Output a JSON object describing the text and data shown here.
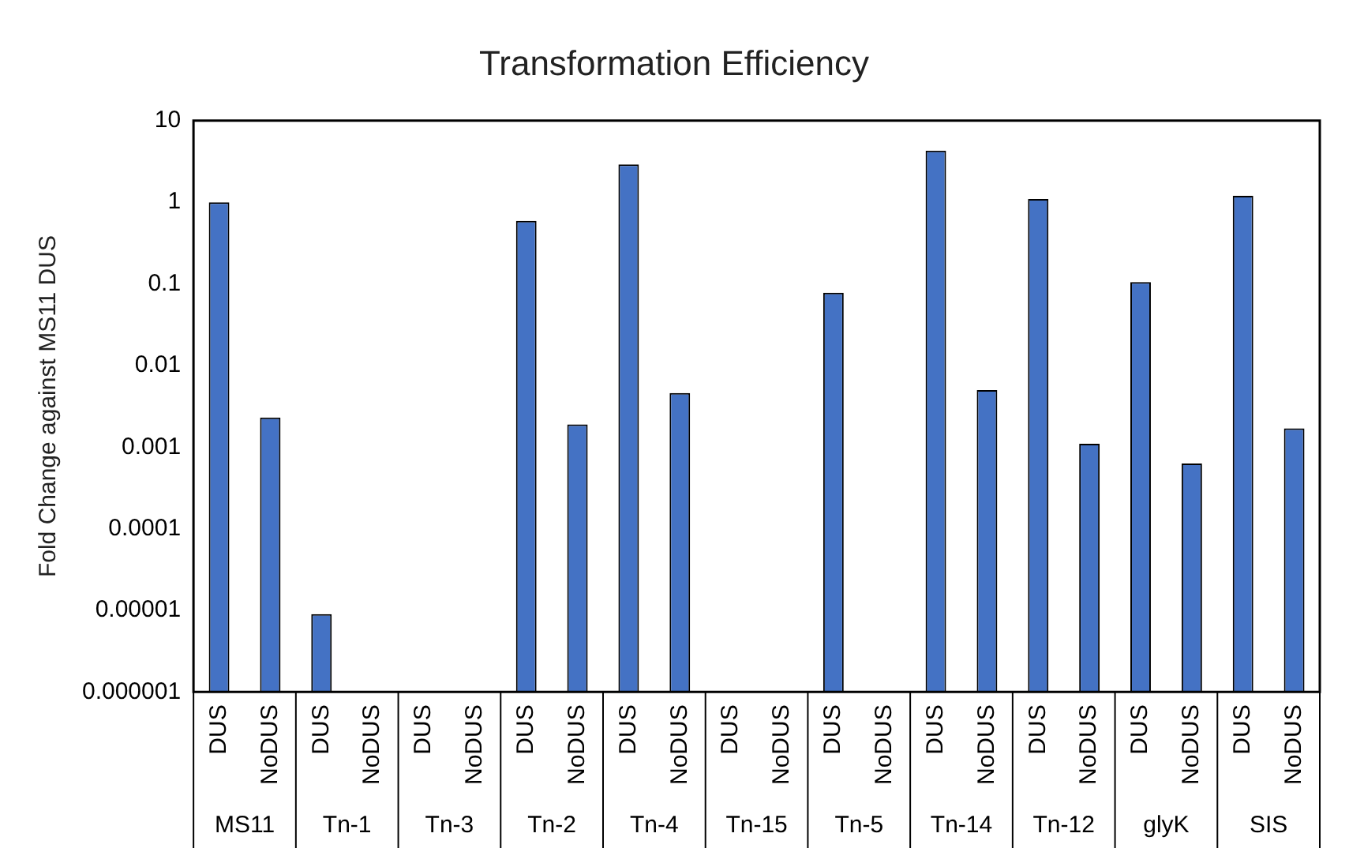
{
  "chart_data": {
    "type": "bar",
    "title": "Transformation Efficiency",
    "ylabel": "Fold Change against MS11 DUS",
    "categories": [
      "DUS",
      "NoDUS",
      "DUS",
      "NoDUS",
      "DUS",
      "NoDUS",
      "DUS",
      "NoDUS",
      "DUS",
      "NoDUS",
      "DUS",
      "NoDUS",
      "DUS",
      "NoDUS",
      "DUS",
      "NoDUS",
      "DUS",
      "NoDUS",
      "DUS",
      "NoDUS",
      "DUS",
      "NoDUS"
    ],
    "values": [
      1,
      0.0023,
      9e-06,
      null,
      null,
      null,
      0.59,
      0.0019,
      2.9,
      0.0046,
      null,
      null,
      0.078,
      null,
      4.3,
      0.005,
      1.1,
      0.0011,
      0.105,
      0.00063,
      1.2,
      0.0017
    ],
    "color": "#4472c4",
    "log": true,
    "ylim": [
      1e-06,
      10
    ],
    "yticks": [
      {
        "value": 1e-06,
        "label": "0.000001"
      },
      {
        "value": 1e-05,
        "label": "0.00001"
      },
      0.0001,
      0.001,
      0.01,
      0.1,
      1,
      10
    ],
    "grid": false,
    "annotations": [
      "MS11",
      "Tn-1",
      "Tn-3",
      "Tn-2",
      "Tn-4",
      "Tn-15",
      "Tn-5",
      "Tn-14",
      "Tn-12",
      "glyK",
      "SIS"
    ]
  }
}
